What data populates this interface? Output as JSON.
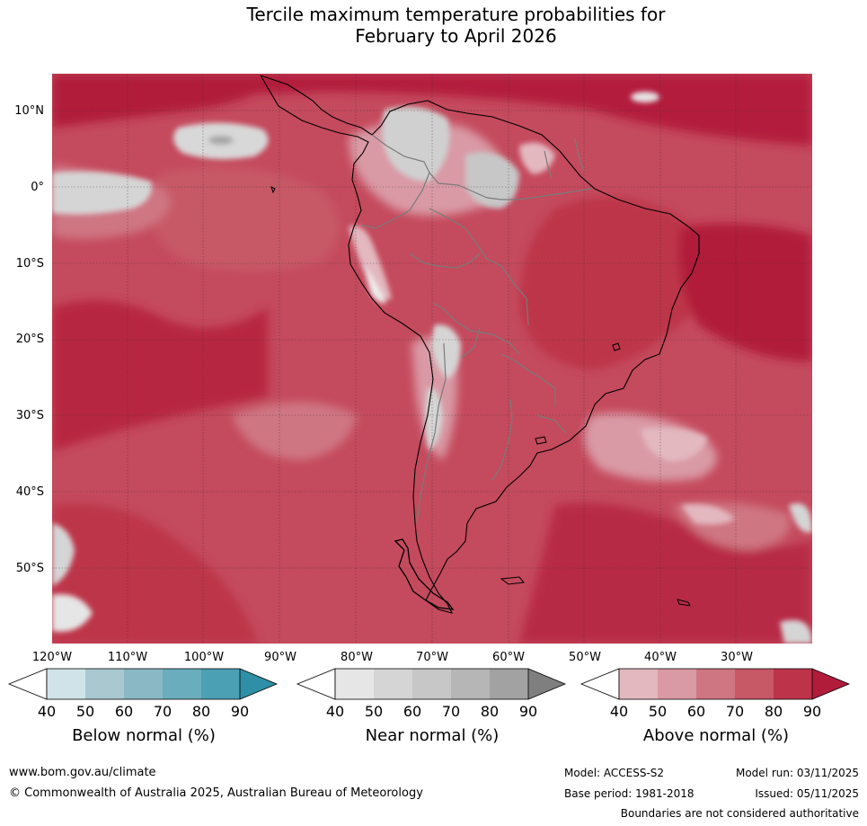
{
  "title": {
    "line1": "Tercile maximum temperature probabilities for",
    "line2": "February to April 2026"
  },
  "map": {
    "region": "South America and surrounding oceans",
    "lat_labels": [
      "10°N",
      "0°",
      "10°S",
      "20°S",
      "30°S",
      "40°S",
      "50°S"
    ],
    "lon_labels": [
      "120°W",
      "110°W",
      "100°W",
      "90°W",
      "80°W",
      "70°W",
      "60°W",
      "50°W",
      "40°W",
      "30°W"
    ]
  },
  "legend": {
    "tick_labels": [
      "40",
      "50",
      "60",
      "70",
      "80",
      "90"
    ],
    "below": {
      "title": "Below normal (%)",
      "colors": [
        "#ffffff",
        "#cfe3e9",
        "#a9c8d0",
        "#8bb8c5",
        "#6aadbd",
        "#4ba0b3",
        "#2e8fa6"
      ]
    },
    "near": {
      "title": "Near normal (%)",
      "colors": [
        "#ffffff",
        "#e6e6e6",
        "#d5d5d5",
        "#c7c7c7",
        "#b6b6b6",
        "#a2a2a2",
        "#7f7f7f"
      ]
    },
    "above": {
      "title": "Above normal (%)",
      "colors": [
        "#ffffff",
        "#e3b8bf",
        "#d99aa5",
        "#cf7683",
        "#c75866",
        "#bd344a",
        "#b11c3a"
      ]
    }
  },
  "footer": {
    "website": "www.bom.gov.au/climate",
    "copyright": "© Commonwealth of Australia 2025, Australian Bureau of Meteorology",
    "model": "Model: ACCESS-S2",
    "base_period": "Base period: 1981-2018",
    "model_run": "Model run: 03/11/2025",
    "issued": "Issued: 05/11/2025",
    "disclaimer": "Boundaries are not considered authoritative"
  }
}
